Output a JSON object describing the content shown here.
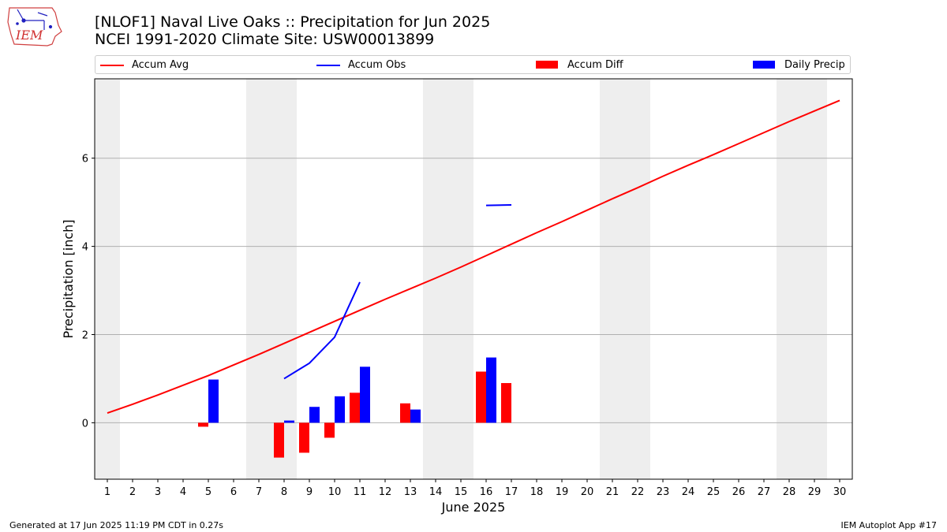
{
  "header": {
    "title_line1": "[NLOF1] Naval Live Oaks :: Precipitation for Jun 2025",
    "title_line2": "NCEI 1991-2020 Climate Site: USW00013899",
    "logo_text": "IEM"
  },
  "legend": [
    {
      "label": "Accum Avg",
      "color": "#ff0000",
      "kind": "line"
    },
    {
      "label": "Accum Obs",
      "color": "#0000ff",
      "kind": "line"
    },
    {
      "label": "Accum Diff",
      "color": "#ff0000",
      "kind": "patch"
    },
    {
      "label": "Daily Precip",
      "color": "#0000ff",
      "kind": "patch"
    }
  ],
  "footer": {
    "generated": "Generated at 17 Jun 2025 11:19 PM CDT in 0.27s",
    "app": "IEM Autoplot App #17"
  },
  "chart_data": {
    "type": "bar",
    "title": "[NLOF1] Naval Live Oaks :: Precipitation for Jun 2025",
    "xlabel": "June 2025",
    "ylabel": "Precipitation [inch]",
    "xlim": [
      0.5,
      30.5
    ],
    "ylim": [
      -1.28,
      7.8
    ],
    "yticks": [
      0,
      2,
      4,
      6
    ],
    "xticks": [
      1,
      2,
      3,
      4,
      5,
      6,
      7,
      8,
      9,
      10,
      11,
      12,
      13,
      14,
      15,
      16,
      17,
      18,
      19,
      20,
      21,
      22,
      23,
      24,
      25,
      26,
      27,
      28,
      29,
      30
    ],
    "grid": "y",
    "legend_position": "top",
    "weekend_bands": [
      [
        0.5,
        1.5
      ],
      [
        6.5,
        8.5
      ],
      [
        13.5,
        15.5
      ],
      [
        20.5,
        22.5
      ],
      [
        27.5,
        29.5
      ]
    ],
    "accum_avg": {
      "name": "Accum Avg",
      "color": "#ff0000",
      "x": [
        1,
        2,
        3,
        4,
        5,
        6,
        7,
        8,
        9,
        10,
        11,
        12,
        13,
        14,
        15,
        16,
        17,
        18,
        19,
        20,
        21,
        22,
        23,
        24,
        25,
        26,
        27,
        28,
        29,
        30
      ],
      "values": [
        0.22,
        0.42,
        0.63,
        0.85,
        1.07,
        1.31,
        1.55,
        1.8,
        2.05,
        2.3,
        2.55,
        2.8,
        3.04,
        3.28,
        3.53,
        3.79,
        4.05,
        4.31,
        4.56,
        4.82,
        5.08,
        5.33,
        5.59,
        5.84,
        6.08,
        6.33,
        6.58,
        6.83,
        7.07,
        7.31
      ]
    },
    "accum_obs": {
      "name": "Accum Obs",
      "color": "#0000ff",
      "segments": [
        {
          "x": [
            8,
            9,
            10,
            11
          ],
          "values": [
            1.0,
            1.35,
            1.94,
            3.19
          ]
        },
        {
          "x": [
            16,
            17
          ],
          "values": [
            4.93,
            4.94
          ]
        }
      ]
    },
    "accum_diff": {
      "name": "Accum Diff",
      "color": "#ff0000",
      "x": [
        5,
        8,
        9,
        10,
        11,
        13,
        16,
        17
      ],
      "values": [
        -0.09,
        -0.79,
        -0.68,
        -0.34,
        0.68,
        0.44,
        1.16,
        0.9
      ]
    },
    "daily_precip": {
      "name": "Daily Precip",
      "color": "#0000ff",
      "x": [
        5,
        8,
        9,
        10,
        11,
        13,
        16
      ],
      "values": [
        0.98,
        0.05,
        0.36,
        0.6,
        1.27,
        0.3,
        1.48
      ]
    }
  }
}
